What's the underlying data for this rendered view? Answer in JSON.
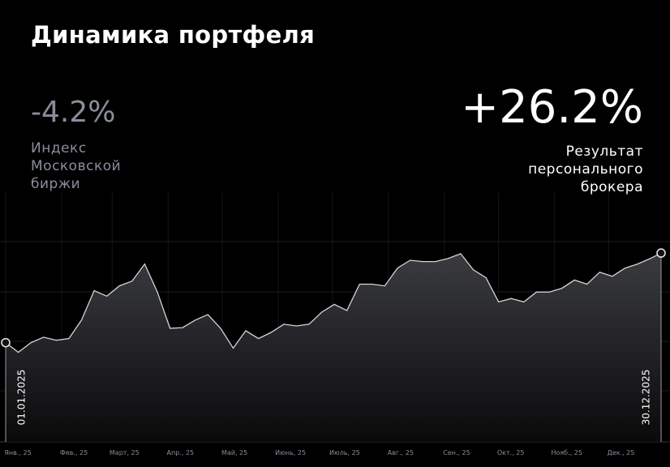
{
  "chart_data": {
    "type": "area",
    "title": "Динамика портфеля",
    "annotations": [
      {
        "text": "-4.2%",
        "label": "Индекс Московской биржи"
      },
      {
        "text": "+26.2%",
        "label": "Результат персонального брокера"
      }
    ],
    "x": [
      "01.01.2025",
      "08.01.2025",
      "15.01.2025",
      "22.01.2025",
      "29.01.2025",
      "05.02.2025",
      "12.02.2025",
      "19.02.2025",
      "26.02.2025",
      "05.03.2025",
      "12.03.2025",
      "19.03.2025",
      "26.03.2025",
      "02.04.2025",
      "09.04.2025",
      "16.04.2025",
      "23.04.2025",
      "30.04.2025",
      "07.05.2025",
      "14.05.2025",
      "21.05.2025",
      "28.05.2025",
      "04.06.2025",
      "11.06.2025",
      "18.06.2025",
      "25.06.2025",
      "02.07.2025",
      "09.07.2025",
      "16.07.2025",
      "23.07.2025",
      "30.07.2025",
      "06.08.2025",
      "13.08.2025",
      "20.08.2025",
      "27.08.2025",
      "03.09.2025",
      "10.09.2025",
      "17.09.2025",
      "24.09.2025",
      "01.10.2025",
      "08.10.2025",
      "15.10.2025",
      "22.10.2025",
      "29.10.2025",
      "05.11.2025",
      "12.11.2025",
      "19.11.2025",
      "26.11.2025",
      "03.12.2025",
      "10.12.2025",
      "17.12.2025",
      "24.12.2025",
      "30.12.2025"
    ],
    "values": [
      100,
      97.2,
      100,
      101.6,
      100.7,
      101.2,
      106.6,
      115.2,
      113.6,
      116.6,
      118,
      123,
      114.8,
      104.2,
      104.4,
      106.6,
      108.2,
      104.2,
      98.4,
      103.5,
      101.2,
      103,
      105.4,
      104.9,
      105.4,
      108.9,
      111.2,
      109.4,
      117.1,
      117.1,
      116.6,
      121.8,
      124.1,
      123.7,
      123.7,
      124.6,
      126,
      121.3,
      119,
      111.9,
      112.9,
      111.9,
      114.8,
      114.8,
      115.9,
      118.3,
      117.1,
      120.6,
      119.4,
      121.8,
      123,
      124.6,
      126.2
    ],
    "color": "#d4d4d4",
    "ylim": [
      71,
      144
    ],
    "xticks": [
      {
        "value": "01.01.2025",
        "label": "Янв., 25"
      },
      {
        "value": "01.02.2025",
        "label": "Фев., 25"
      },
      {
        "value": "01.03.2025",
        "label": "Март, 25"
      },
      {
        "value": "01.04.2025",
        "label": "Апр., 25"
      },
      {
        "value": "01.05.2025",
        "label": "Май, 25"
      },
      {
        "value": "01.06.2025",
        "label": "Июнь, 25"
      },
      {
        "value": "01.07.2025",
        "label": "Июль, 25"
      },
      {
        "value": "01.08.2025",
        "label": "Авг., 25"
      },
      {
        "value": "01.09.2025",
        "label": "Сен., 25"
      },
      {
        "value": "01.10.2025",
        "label": "Окт., 25"
      },
      {
        "value": "01.11.2025",
        "label": "Нояб., 25"
      },
      {
        "value": "01.12.2025",
        "label": "Дек., 25"
      }
    ]
  }
}
